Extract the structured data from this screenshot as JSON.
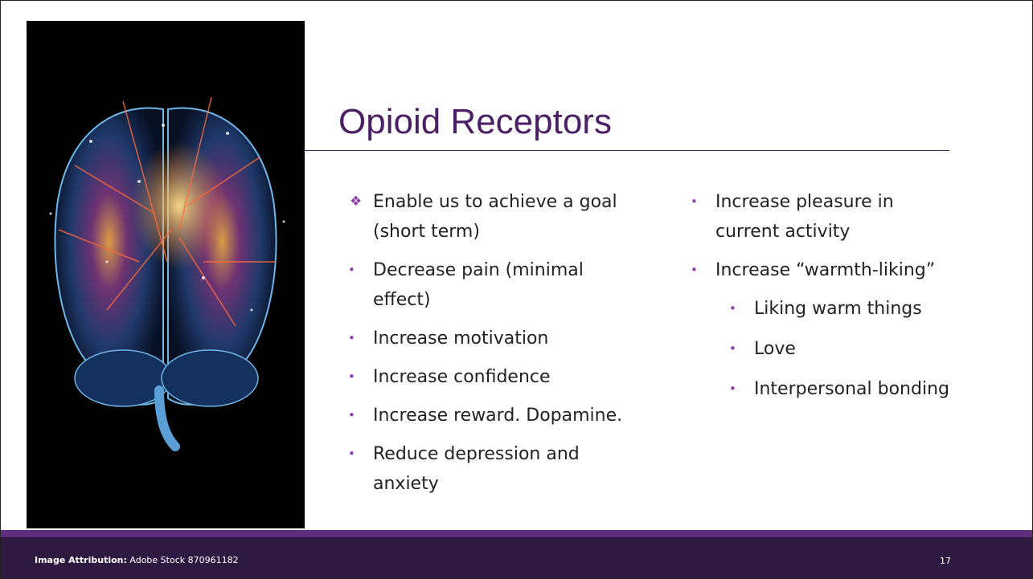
{
  "slide": {
    "title": "Opioid Receptors",
    "left_items": [
      {
        "marker": "❖",
        "level": 1,
        "lines": [
          "Enable us to achieve a goal",
          "(short term)"
        ]
      },
      {
        "marker": "•",
        "level": 1,
        "lines": [
          "Decrease pain (minimal",
          "effect)"
        ]
      },
      {
        "marker": "•",
        "level": 1,
        "lines": [
          "Increase motivation"
        ]
      },
      {
        "marker": "•",
        "level": 1,
        "lines": [
          "Increase confidence"
        ]
      },
      {
        "marker": "•",
        "level": 1,
        "lines": [
          "Increase reward. Dopamine."
        ]
      },
      {
        "marker": "•",
        "level": 1,
        "lines": [
          "Reduce depression and",
          "anxiety"
        ]
      }
    ],
    "right_items": [
      {
        "marker": "•",
        "level": 1,
        "lines": [
          "Increase pleasure in",
          "current activity"
        ]
      },
      {
        "marker": "•",
        "level": 1,
        "lines": [
          "Increase “warmth-liking”"
        ]
      },
      {
        "marker": "•",
        "level": 2,
        "lines": [
          "Liking warm things"
        ]
      },
      {
        "marker": "•",
        "level": 2,
        "lines": [
          "Love"
        ]
      },
      {
        "marker": "•",
        "level": 2,
        "lines": [
          "Interpersonal bonding"
        ]
      }
    ],
    "footer": {
      "attribution_label": "Image Attribution:",
      "attribution_text": "Adobe Stock 870961182",
      "page_number": "17"
    }
  }
}
